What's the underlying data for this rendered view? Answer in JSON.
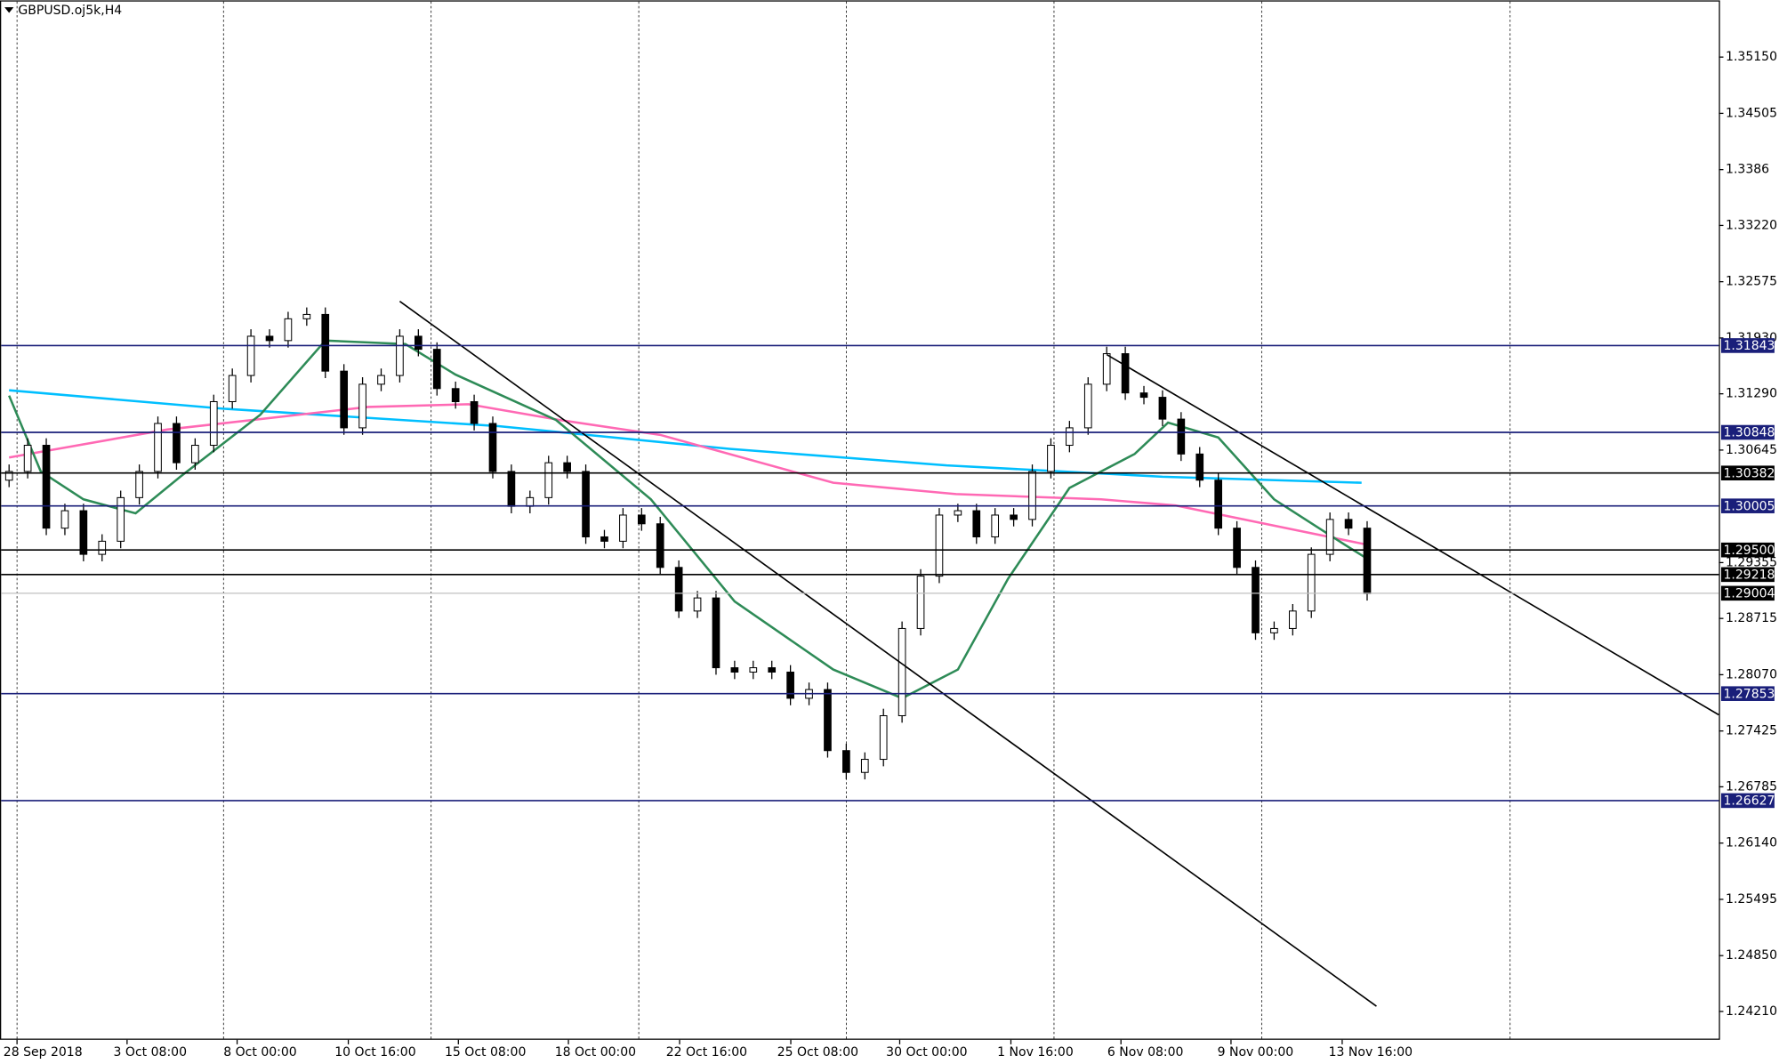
{
  "chart_data": {
    "type": "candlestick",
    "title": "GBPUSD.oj5k,H4",
    "ylim": [
      1.23885,
      1.358
    ],
    "yticks": [
      {
        "value": 1.3515,
        "label": "1.35150"
      },
      1.34505,
      1.3386,
      {
        "value": 1.3322,
        "label": "1.33220"
      },
      1.32575,
      {
        "value": 1.3193,
        "label": "1.31930"
      },
      {
        "value": 1.3129,
        "label": "1.31290"
      },
      1.30645,
      1.29355,
      1.28715,
      {
        "value": 1.2807,
        "label": "1.28070"
      },
      1.27425,
      1.26785,
      {
        "value": 1.2614,
        "label": "1.26140"
      },
      1.25495,
      {
        "value": 1.2485,
        "label": "1.24850"
      },
      {
        "value": 1.2421,
        "label": "1.24210"
      }
    ],
    "xtick_labels": [
      "28 Sep 2018",
      "3 Oct 08:00",
      "8 Oct 00:00",
      "10 Oct 16:00",
      "15 Oct 08:00",
      "18 Oct 00:00",
      "22 Oct 16:00",
      "25 Oct 08:00",
      "30 Oct 00:00",
      "1 Nov 16:00",
      "6 Nov 08:00",
      "9 Nov 00:00",
      "13 Nov 16:00"
    ],
    "grid": true,
    "bull_color": "#ffffff",
    "bear_color": "#000000",
    "open": [
      1.303,
      1.304,
      1.307,
      1.2975,
      1.2995,
      1.2945,
      1.296,
      1.301,
      1.304,
      1.3095,
      1.305,
      1.307,
      1.312,
      1.315,
      1.3195,
      1.319,
      1.3215,
      1.322,
      1.3155,
      1.309,
      1.314,
      1.315,
      1.3195,
      1.318,
      1.3135,
      1.312,
      1.3095,
      1.304,
      1.3,
      1.301,
      1.305,
      1.304,
      1.2965,
      1.296,
      1.299,
      1.298,
      1.293,
      1.288,
      1.2895,
      1.2815,
      1.281,
      1.2815,
      1.281,
      1.278,
      1.279,
      1.272,
      1.2695,
      1.271,
      1.276,
      1.286,
      1.292,
      1.299,
      1.2995,
      1.2965,
      1.299,
      1.2985,
      1.304,
      1.307,
      1.309,
      1.314,
      1.3175,
      1.313,
      1.3125,
      1.31,
      1.306,
      1.303,
      1.2975,
      1.293,
      1.2855,
      1.286,
      1.288,
      1.2945,
      1.2985,
      1.2975
    ],
    "high": [
      1.3048,
      1.3078,
      1.3078,
      1.3003,
      1.3003,
      1.2968,
      1.3018,
      1.3048,
      1.3103,
      1.3103,
      1.3078,
      1.3128,
      1.3158,
      1.3203,
      1.3203,
      1.3223,
      1.3228,
      1.3228,
      1.3163,
      1.3148,
      1.3158,
      1.3203,
      1.3203,
      1.3188,
      1.3143,
      1.3128,
      1.3103,
      1.3048,
      1.3018,
      1.3058,
      1.3058,
      1.3048,
      1.2973,
      1.2998,
      1.2998,
      1.2988,
      1.2938,
      1.2903,
      1.2903,
      1.2823,
      1.2823,
      1.2823,
      1.2818,
      1.2798,
      1.2798,
      1.2728,
      1.2718,
      1.2768,
      1.2868,
      1.2928,
      1.2998,
      1.3003,
      1.3003,
      1.2998,
      1.2998,
      1.3048,
      1.3078,
      1.3098,
      1.3148,
      1.3183,
      1.3183,
      1.3138,
      1.3133,
      1.3108,
      1.3068,
      1.3038,
      1.2983,
      1.2938,
      1.2868,
      1.2888,
      1.2953,
      1.2993,
      1.2993,
      1.2983
    ],
    "low": [
      1.3022,
      1.3032,
      1.2967,
      1.2967,
      1.2937,
      1.2937,
      1.2952,
      1.3002,
      1.3032,
      1.3042,
      1.3042,
      1.3062,
      1.3112,
      1.3142,
      1.3182,
      1.3182,
      1.3207,
      1.3147,
      1.3082,
      1.3082,
      1.3132,
      1.3142,
      1.3172,
      1.3127,
      1.3112,
      1.3087,
      1.3032,
      1.2992,
      1.2992,
      1.3002,
      1.3032,
      1.2957,
      1.2952,
      1.2952,
      1.2972,
      1.2922,
      1.2872,
      1.2872,
      1.2807,
      1.2802,
      1.2802,
      1.2802,
      1.2772,
      1.2772,
      1.2712,
      1.2687,
      1.2687,
      1.2702,
      1.2752,
      1.2852,
      1.2912,
      1.2982,
      1.2957,
      1.2957,
      1.2977,
      1.2977,
      1.3032,
      1.3062,
      1.3082,
      1.3132,
      1.3122,
      1.3117,
      1.3092,
      1.3052,
      1.3022,
      1.2967,
      1.2922,
      1.2847,
      1.2847,
      1.2852,
      1.2872,
      1.2937,
      1.2967,
      1.2892
    ],
    "close": [
      1.304,
      1.307,
      1.2975,
      1.2995,
      1.2945,
      1.296,
      1.301,
      1.304,
      1.3095,
      1.305,
      1.307,
      1.312,
      1.315,
      1.3195,
      1.319,
      1.3215,
      1.322,
      1.3155,
      1.309,
      1.314,
      1.315,
      1.3195,
      1.318,
      1.3135,
      1.312,
      1.3095,
      1.304,
      1.3,
      1.301,
      1.305,
      1.304,
      1.2965,
      1.296,
      1.299,
      1.298,
      1.293,
      1.288,
      1.2895,
      1.2815,
      1.281,
      1.2815,
      1.281,
      1.278,
      1.279,
      1.272,
      1.2695,
      1.271,
      1.276,
      1.286,
      1.292,
      1.299,
      1.2995,
      1.2965,
      1.299,
      1.2985,
      1.304,
      1.307,
      1.309,
      1.314,
      1.3175,
      1.313,
      1.3125,
      1.31,
      1.306,
      1.303,
      1.2975,
      1.293,
      1.2855,
      1.286,
      1.288,
      1.2945,
      1.2985,
      1.2975,
      1.29
    ],
    "series": [
      {
        "color": "#00bfff",
        "x": [
          0,
          11.5,
          26.3,
          38.7,
          50.4,
          62,
          72.7
        ],
        "values": [
          1.3133,
          1.3112,
          1.3092,
          1.3066,
          1.3047,
          1.3034,
          1.3027
        ]
      },
      {
        "color": "#ff69b4",
        "x": [
          0,
          8.5,
          19.3,
          24.7,
          29.6,
          35,
          44.3,
          50.9,
          58.7,
          62.7,
          66.6,
          73
        ],
        "values": [
          1.3056,
          1.3088,
          1.3114,
          1.3117,
          1.3099,
          1.3082,
          1.3027,
          1.3014,
          1.3008,
          1.3001,
          1.2984,
          1.2956
        ]
      },
      {
        "color": "#2e8b57",
        "x": [
          0,
          1.7,
          4,
          6.8,
          9.2,
          13.5,
          17,
          21.3,
          24,
          29.4,
          34.5,
          39,
          44.3,
          48,
          51,
          53.7,
          57,
          60.5,
          62.3,
          65,
          68,
          71.8,
          73
        ],
        "values": [
          1.3127,
          1.304,
          1.3008,
          1.2992,
          1.3034,
          1.3105,
          1.319,
          1.3186,
          1.3151,
          1.3099,
          1.3008,
          1.2891,
          1.2813,
          1.278,
          1.2813,
          1.2917,
          1.3021,
          1.306,
          1.3096,
          1.3079,
          1.3008,
          1.2956,
          1.294
        ]
      }
    ],
    "levels": [
      {
        "value": 1.31843,
        "label": "1.31843",
        "color": "#1a1f7a"
      },
      {
        "value": 1.30848,
        "label": "1.30848",
        "color": "#1a1f7a"
      },
      {
        "value": 1.30382,
        "label": "1.30382",
        "color": "#000000"
      },
      {
        "value": 1.30005,
        "label": "1.30005",
        "color": "#1a1f7a"
      },
      {
        "value": 1.295,
        "label": "1.29500",
        "color": "#000000"
      },
      {
        "value": 1.29218,
        "label": "1.29218",
        "color": "#000000"
      },
      {
        "value": 1.29004,
        "label": "1.29004",
        "color": "#c0c0c0"
      },
      {
        "value": 1.27853,
        "label": "1.27853",
        "color": "#1a1f7a"
      },
      {
        "value": 1.26627,
        "label": "1.26627",
        "color": "#1a1f7a"
      }
    ],
    "trendlines": [
      {
        "x1": 21,
        "y1": 1.3235,
        "x2": 73.5,
        "y2": 1.2427
      },
      {
        "x1": 59,
        "y1": 1.3174,
        "x2": 91.9,
        "y2": 1.2761
      }
    ]
  }
}
